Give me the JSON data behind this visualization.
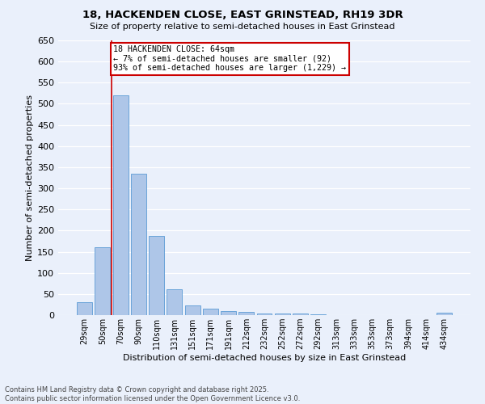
{
  "title": "18, HACKENDEN CLOSE, EAST GRINSTEAD, RH19 3DR",
  "subtitle": "Size of property relative to semi-detached houses in East Grinstead",
  "xlabel": "Distribution of semi-detached houses by size in East Grinstead",
  "ylabel": "Number of semi-detached properties",
  "footer_line1": "Contains HM Land Registry data © Crown copyright and database right 2025.",
  "footer_line2": "Contains public sector information licensed under the Open Government Licence v3.0.",
  "categories": [
    "29sqm",
    "50sqm",
    "70sqm",
    "90sqm",
    "110sqm",
    "131sqm",
    "151sqm",
    "171sqm",
    "191sqm",
    "212sqm",
    "232sqm",
    "252sqm",
    "272sqm",
    "292sqm",
    "313sqm",
    "333sqm",
    "353sqm",
    "373sqm",
    "394sqm",
    "414sqm",
    "434sqm"
  ],
  "values": [
    30,
    160,
    520,
    335,
    188,
    62,
    22,
    15,
    10,
    8,
    4,
    4,
    3,
    2,
    0,
    0,
    0,
    0,
    0,
    0,
    5
  ],
  "bar_color": "#aec6e8",
  "bar_edge_color": "#5b9bd5",
  "background_color": "#eaf0fb",
  "grid_color": "#ffffff",
  "property_line_x": 1.5,
  "property_label": "18 HACKENDEN CLOSE: 64sqm",
  "annotation_line1": "← 7% of semi-detached houses are smaller (92)",
  "annotation_line2": "93% of semi-detached houses are larger (1,229) →",
  "annotation_box_color": "#ffffff",
  "annotation_box_edge": "#cc0000",
  "property_line_color": "#cc0000",
  "ylim": [
    0,
    650
  ],
  "yticks": [
    0,
    50,
    100,
    150,
    200,
    250,
    300,
    350,
    400,
    450,
    500,
    550,
    600,
    650
  ]
}
